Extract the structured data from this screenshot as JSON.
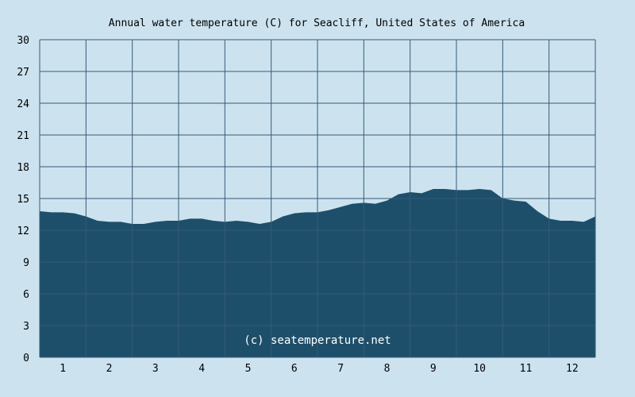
{
  "chart_data": {
    "type": "area",
    "title": "Annual water temperature (C) for Seacliff, United States of America",
    "xlabel": "",
    "ylabel": "",
    "categories": [
      "1",
      "2",
      "3",
      "4",
      "5",
      "6",
      "7",
      "8",
      "9",
      "10",
      "11",
      "12"
    ],
    "ylim": [
      0,
      30
    ],
    "yticks": [
      0,
      3,
      6,
      9,
      12,
      15,
      18,
      21,
      24,
      27,
      30
    ],
    "grid": true,
    "x": [
      0.0,
      0.25,
      0.5,
      0.75,
      1.0,
      1.25,
      1.5,
      1.75,
      2.0,
      2.25,
      2.5,
      2.75,
      3.0,
      3.25,
      3.5,
      3.75,
      4.0,
      4.25,
      4.5,
      4.75,
      5.0,
      5.25,
      5.5,
      5.75,
      6.0,
      6.25,
      6.5,
      6.75,
      7.0,
      7.25,
      7.5,
      7.75,
      8.0,
      8.25,
      8.5,
      8.75,
      9.0,
      9.25,
      9.5,
      9.75,
      10.0,
      10.25,
      10.5,
      10.75,
      11.0,
      11.25,
      11.5,
      11.75,
      12.0
    ],
    "values": [
      13.8,
      13.7,
      13.7,
      13.6,
      13.3,
      12.9,
      12.8,
      12.8,
      12.6,
      12.6,
      12.8,
      12.9,
      12.9,
      13.1,
      13.1,
      12.9,
      12.8,
      12.9,
      12.8,
      12.6,
      12.8,
      13.3,
      13.6,
      13.7,
      13.7,
      13.9,
      14.2,
      14.5,
      14.6,
      14.5,
      14.8,
      15.4,
      15.6,
      15.5,
      15.9,
      15.9,
      15.8,
      15.8,
      15.9,
      15.8,
      15.0,
      14.8,
      14.7,
      13.8,
      13.1,
      12.9,
      12.9,
      12.8,
      13.3
    ],
    "watermark": "(c) seatemperature.net",
    "colors": {
      "background": "#cce3ef",
      "plot_background": "#cce3ef",
      "area": "#1e4f6a",
      "grid": "#365a78"
    }
  }
}
